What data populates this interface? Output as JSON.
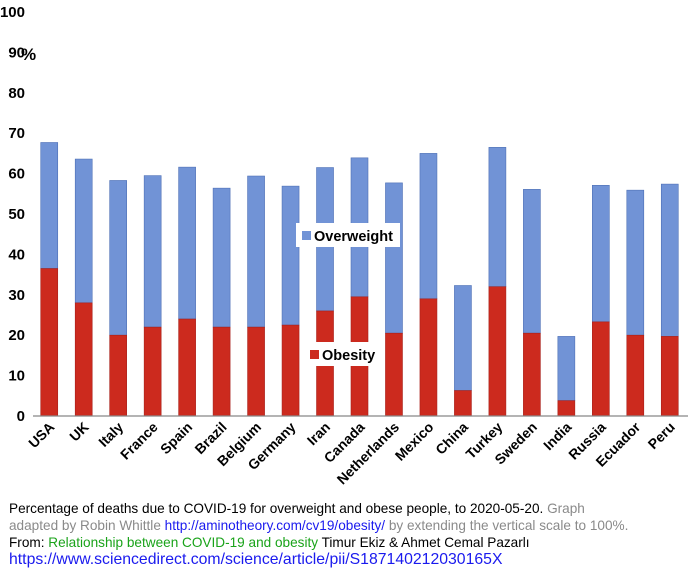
{
  "chart_data": {
    "type": "bar",
    "stacked": true,
    "ylim": [
      0,
      100
    ],
    "yticks": [
      "0",
      "10",
      "20",
      "30",
      "40",
      "50",
      "60",
      "70",
      "80",
      "90",
      "100"
    ],
    "percent_label": "%",
    "grid": false,
    "categories": [
      "USA",
      "UK",
      "Italy",
      "France",
      "Spain",
      "Brazil",
      "Belgium",
      "Germany",
      "Iran",
      "Canada",
      "Netherlands",
      "Mexico",
      "China",
      "Turkey",
      "Sweden",
      "India",
      "Russia",
      "Ecuador",
      "Peru"
    ],
    "series": [
      {
        "name": "Obesity",
        "color": "#cc2a1e",
        "values": [
          36.5,
          28,
          20,
          22,
          24,
          22,
          22,
          22.5,
          26,
          29.5,
          20.5,
          29,
          6.3,
          32,
          20.5,
          3.8,
          23.3,
          20,
          19.7
        ]
      },
      {
        "name": "Overweight",
        "color": "#7193d6",
        "values": [
          31.2,
          35.6,
          38.3,
          37.5,
          37.6,
          34.4,
          37.4,
          34.4,
          35.5,
          34.4,
          37.2,
          36,
          26,
          34.5,
          35.6,
          15.9,
          33.8,
          35.9,
          37.7
        ]
      }
    ],
    "legend": [
      {
        "label": "Overweight",
        "color": "#7193d6"
      },
      {
        "label": "Obesity",
        "color": "#cc2a1e"
      }
    ]
  },
  "caption": {
    "line1": "Percentage of deaths due to COVID-19 for overweight and obese people, to 2020-05-20.",
    "line1_gray": "Graph",
    "line2_gray_a": "adapted by Robin Whittle",
    "line2_link": "http://aminotheory.com/cv19/obesity/",
    "line2_gray_b": "by extending the vertical scale to 100%.",
    "line3_from": "From:",
    "line3_title": "Relationship between COVID-19 and obesity",
    "line3_authors": "Timur Ekiz & Ahmet Cemal Pazarlı",
    "line4_url": "https://www.sciencedirect.com/science/article/pii/S187140212030165X"
  },
  "colors": {
    "overweight": "#7193d6",
    "obesity": "#cc2a1e",
    "axis": "#888888"
  }
}
